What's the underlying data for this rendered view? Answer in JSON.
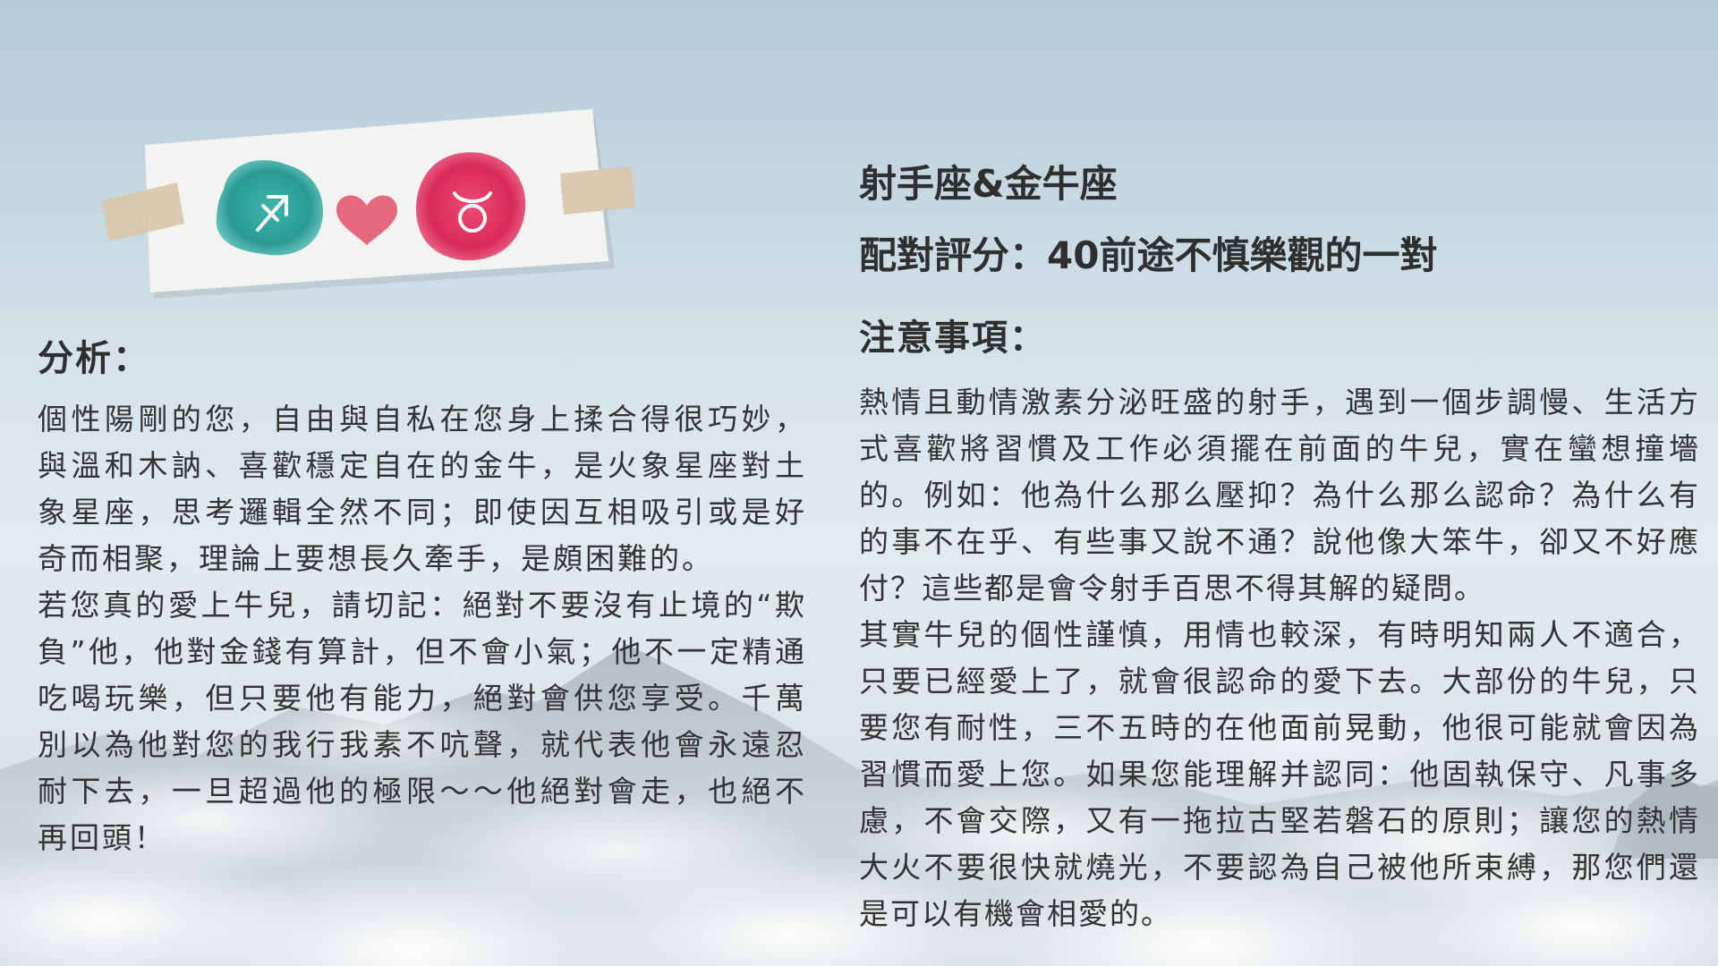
{
  "banner": {
    "sign_left": "sagittarius",
    "sign_right": "taurus",
    "colors": {
      "left_circle": "#2fa39e",
      "heart": "#e2657b",
      "right_circle": "#e0315f",
      "tape": "#d8c6ad",
      "paper": "#f2f2f1"
    },
    "icons": [
      "sagittarius-icon",
      "heart-icon",
      "taurus-icon"
    ]
  },
  "header": {
    "pair_title": "射手座&金牛座",
    "score_line": "配對評分：40前途不慎樂觀的一對"
  },
  "analysis": {
    "title": "分析：",
    "paragraph1": "個性陽剛的您，自由與自私在您身上揉合得很巧妙，與溫和木訥、喜歡穩定自在的金牛，是火象星座對土象星座，思考邏輯全然不同；即使因互相吸引或是好奇而相聚，理論上要想長久牽手，是頗困難的。",
    "paragraph2": "若您真的愛上牛兒，請切記：絕對不要沒有止境的“欺負”他，他對金錢有算計，但不會小氣；他不一定精通吃喝玩樂，但只要他有能力，絕對會供您享受。千萬別以為他對您的我行我素不吭聲，就代表他會永遠忍耐下去，一旦超過他的極限～～他絕對會走，也絕不再回頭！"
  },
  "notes": {
    "title": "注意事項：",
    "paragraph1": "熱情且動情激素分泌旺盛的射手，遇到一個步調慢、生活方式喜歡將習慣及工作必須擺在前面的牛兒，實在蠻想撞墻的。例如：他為什么那么壓抑？為什么那么認命？為什么有的事不在乎、有些事又說不通？說他像大笨牛，卻又不好應付？這些都是會令射手百思不得其解的疑問。",
    "paragraph2": "其實牛兒的個性謹慎，用情也較深，有時明知兩人不適合，只要已經愛上了，就會很認命的愛下去。大部份的牛兒，只要您有耐性，三不五時的在他面前晃動，他很可能就會因為習慣而愛上您。如果您能理解并認同：他固執保守、凡事多慮，不會交際，又有一拖拉古堅若磐石的原則；讓您的熱情大火不要很快就燒光，不要認為自己被他所束縛，那您們還是可以有機會相愛的。"
  }
}
